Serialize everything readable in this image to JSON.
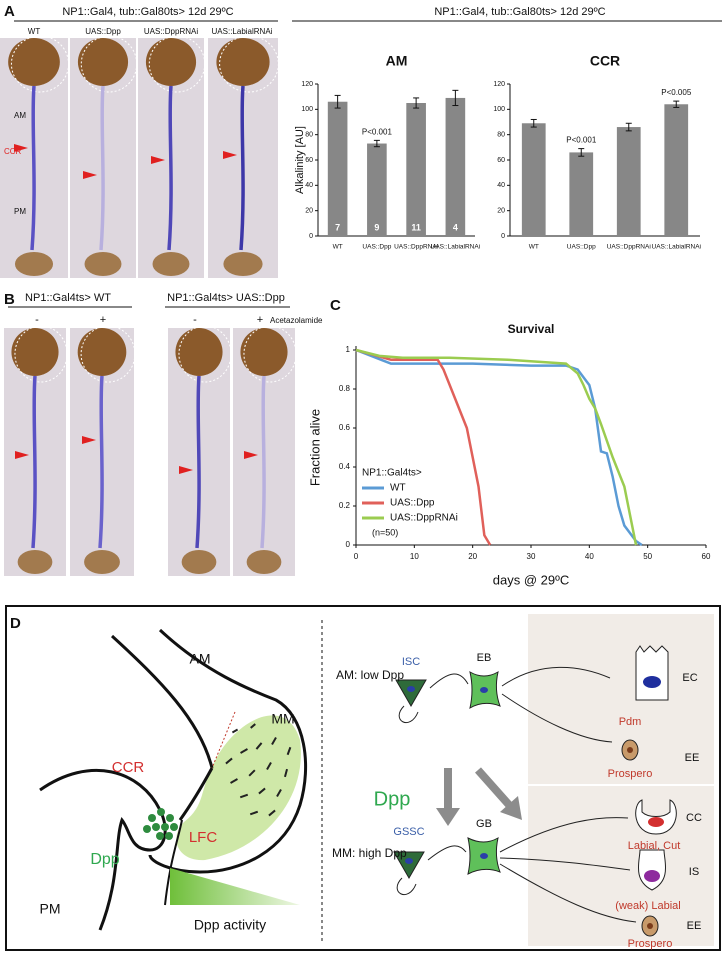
{
  "panel_a": {
    "label": "A",
    "header": "NP1::Gal4, tub::Gal80ts> 12d 29ºC",
    "columns": [
      "WT",
      "UAS::Dpp",
      "UAS::DppRNAi",
      "UAS::LabialRNAi"
    ],
    "photo_labels": [
      "AM",
      "CCR",
      "PM"
    ],
    "chart_header": "NP1::Gal4, tub::Gal80ts> 12d 29ºC"
  },
  "panel_b": {
    "label": "B",
    "groups": [
      "NP1::Gal4ts> WT",
      "NP1::Gal4ts> UAS::Dpp"
    ],
    "treatments": [
      "-",
      "+",
      "-",
      "+"
    ],
    "treatment_name": "Acetazolamide"
  },
  "panel_c_label": "C",
  "chart_data": [
    {
      "type": "bar",
      "title": "AM",
      "ylabel": "Alkalinity [AU]",
      "categories": [
        "WT",
        "UAS::Dpp",
        "UAS::DppRNAi",
        "UAS::LabialRNAi"
      ],
      "values": [
        106,
        73,
        105,
        109
      ],
      "errors": [
        5,
        2.5,
        4,
        6
      ],
      "n": [
        7,
        9,
        11,
        4
      ],
      "value_annotations": [
        null,
        "P<0.001",
        null,
        null
      ],
      "color": "#878787",
      "ylim": [
        0,
        120
      ],
      "yticks": [
        0,
        20,
        40,
        60,
        80,
        100,
        120
      ]
    },
    {
      "type": "bar",
      "title": "CCR",
      "categories": [
        "WT",
        "UAS::Dpp",
        "UAS::DppRNAi",
        "UAS::LabialRNAi"
      ],
      "values": [
        89,
        66,
        86,
        104
      ],
      "errors": [
        3,
        3,
        3,
        2.5
      ],
      "value_annotations": [
        null,
        "P<0.001",
        null,
        "P<0.005"
      ],
      "color": "#878787",
      "ylim": [
        0,
        120
      ],
      "yticks": [
        0,
        20,
        40,
        60,
        80,
        100,
        120
      ]
    },
    {
      "type": "line",
      "title": "Survival",
      "xlabel": "days @ 29ºC",
      "ylabel": "Fraction alive",
      "xlim": [
        0,
        60
      ],
      "xticks": [
        0,
        10,
        20,
        30,
        40,
        50,
        60
      ],
      "ylim": [
        0,
        1
      ],
      "yticks": [
        0,
        0.2,
        0.4,
        0.6,
        0.8,
        1
      ],
      "legend_title": "NP1::Gal4ts>",
      "legend_note": "(n=50)",
      "legend": "left",
      "series": [
        {
          "name": "WT",
          "color": "#5b9bd5",
          "x": [
            0,
            6,
            14,
            20,
            30,
            36,
            38,
            40,
            41,
            42,
            43,
            44,
            45,
            46,
            48,
            49
          ],
          "values": [
            1,
            0.93,
            0.93,
            0.93,
            0.92,
            0.92,
            0.9,
            0.82,
            0.7,
            0.48,
            0.47,
            0.35,
            0.2,
            0.1,
            0.02,
            0
          ]
        },
        {
          "name": "UAS::Dpp",
          "color": "#e0605a",
          "x": [
            0,
            6,
            14,
            15,
            17,
            19,
            20,
            21,
            22,
            23
          ],
          "values": [
            1,
            0.95,
            0.95,
            0.9,
            0.75,
            0.6,
            0.45,
            0.3,
            0.05,
            0
          ]
        },
        {
          "name": "UAS::DppRNAi",
          "color": "#9bcc50",
          "x": [
            0,
            4,
            8,
            16,
            26,
            36,
            38,
            39,
            40,
            41,
            42,
            44,
            46,
            47,
            48
          ],
          "values": [
            1,
            0.97,
            0.96,
            0.96,
            0.95,
            0.93,
            0.88,
            0.82,
            0.75,
            0.7,
            0.62,
            0.45,
            0.3,
            0.15,
            0
          ]
        }
      ]
    }
  ],
  "diagram": {
    "label": "D",
    "gut": {
      "am": "AM",
      "mm": "MM",
      "ccr": "CCR",
      "lfc": "LFC",
      "dpp": "Dpp",
      "pm": "PM",
      "gradient": "Dpp activity"
    },
    "top": {
      "region": "AM: low Dpp",
      "stem": "ISC",
      "progenitor": "EB",
      "ec": "EC",
      "ec_marker": "Pdm",
      "ee": "EE",
      "ee_marker": "Prospero"
    },
    "signal": "Dpp",
    "bottom": {
      "region": "MM: high Dpp",
      "stem": "GSSC",
      "progenitor": "GB",
      "cc": "CC",
      "cc_marker": "Labial, Cut",
      "is": "IS",
      "is_marker": "(weak) Labial",
      "ee": "EE",
      "ee_marker": "Prospero"
    }
  }
}
